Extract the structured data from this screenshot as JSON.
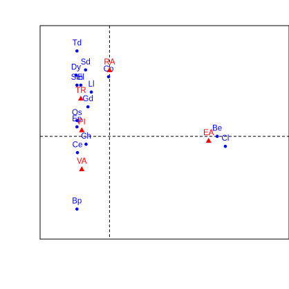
{
  "chart_data": {
    "type": "scatter",
    "title": "",
    "xlabel": "",
    "ylabel": "",
    "xlim": [
      -1.45,
      3.75
    ],
    "ylim": [
      -1.95,
      2.1
    ],
    "grid": false,
    "reference_lines": {
      "x": 0,
      "y": 0
    },
    "colors": {
      "blue_series": "#0000ff",
      "red_series": "#ff0000",
      "axes": "#000000"
    },
    "series": [
      {
        "marker": "circle",
        "color": "#0000ff",
        "points": [
          {
            "label": "Td",
            "x": -0.68,
            "y": 1.62
          },
          {
            "label": "Sd",
            "x": -0.5,
            "y": 1.26
          },
          {
            "label": "Dy",
            "x": -0.7,
            "y": 1.16
          },
          {
            "label": "Co",
            "x": -0.02,
            "y": 1.13
          },
          {
            "label": "Sm",
            "x": -0.68,
            "y": 0.97
          },
          {
            "label": "El",
            "x": -0.6,
            "y": 0.97
          },
          {
            "label": "Ll",
            "x": -0.38,
            "y": 0.84
          },
          {
            "label": "Gd",
            "x": -0.45,
            "y": 0.56
          },
          {
            "label": "Os",
            "x": -0.68,
            "y": 0.3
          },
          {
            "label": "Ep",
            "x": -0.68,
            "y": 0.18
          },
          {
            "label": "Ch",
            "x": -0.49,
            "y": -0.15
          },
          {
            "label": "Ce",
            "x": -0.67,
            "y": -0.31
          },
          {
            "label": "Be",
            "x": 2.25,
            "y": 0.0
          },
          {
            "label": "Cl",
            "x": 2.42,
            "y": -0.19
          },
          {
            "label": "Bp",
            "x": -0.68,
            "y": -1.38
          }
        ]
      },
      {
        "marker": "triangle",
        "color": "#ff0000",
        "points": [
          {
            "label": "RA",
            "x": 0.0,
            "y": 1.26
          },
          {
            "label": "TR",
            "x": -0.6,
            "y": 0.72
          },
          {
            "label": "PI",
            "x": -0.58,
            "y": 0.12
          },
          {
            "label": "VA",
            "x": -0.58,
            "y": -0.62
          },
          {
            "label": "EA",
            "x": 2.07,
            "y": -0.08
          }
        ]
      }
    ]
  }
}
